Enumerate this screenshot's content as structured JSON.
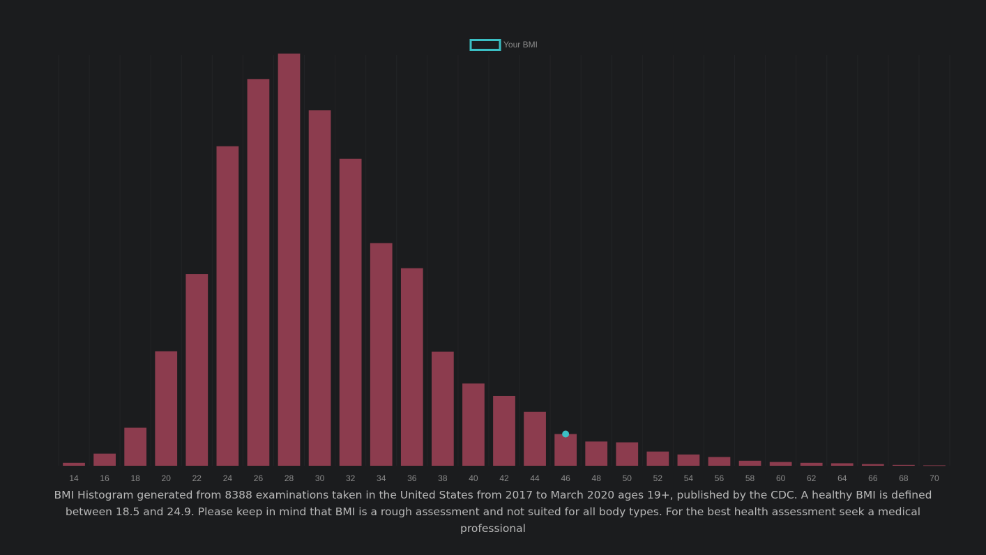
{
  "colors": {
    "background": "#1b1c1e",
    "bar": "#8c3c4e",
    "marker": "#3bbfc4",
    "grid": "#232426",
    "tick_text": "#8a8a8a",
    "caption_text": "#b8b8b8"
  },
  "legend": {
    "label": "Your BMI"
  },
  "caption": "BMI Histogram generated from 8388 examinations taken in the United States from 2017 to March 2020 ages 19+, published by the CDC. A healthy BMI is defined between 18.5 and 24.9. Please keep in mind that BMI is a rough assessment and not suited for all body types. For the best health assessment seek a medical professional",
  "chart_data": {
    "type": "bar",
    "title": "",
    "xlabel": "",
    "ylabel": "",
    "grid": true,
    "legend_position": "top-center",
    "categories": [
      "14",
      "16",
      "18",
      "20",
      "22",
      "24",
      "26",
      "28",
      "30",
      "32",
      "34",
      "36",
      "38",
      "40",
      "42",
      "44",
      "46",
      "48",
      "50",
      "52",
      "54",
      "56",
      "58",
      "60",
      "62",
      "64",
      "66",
      "68",
      "70"
    ],
    "ylim": [
      0,
      1000
    ],
    "series": [
      {
        "values": [
          7,
          29,
          91,
          274,
          459,
          765,
          926,
          987,
          851,
          735,
          533,
          473,
          273,
          197,
          167,
          129,
          76,
          58,
          56,
          34,
          27,
          21,
          12,
          9,
          7,
          6,
          4,
          2,
          1
        ]
      },
      {
        "name": "Your BMI",
        "type": "point",
        "category": "46",
        "value": 76
      }
    ]
  }
}
